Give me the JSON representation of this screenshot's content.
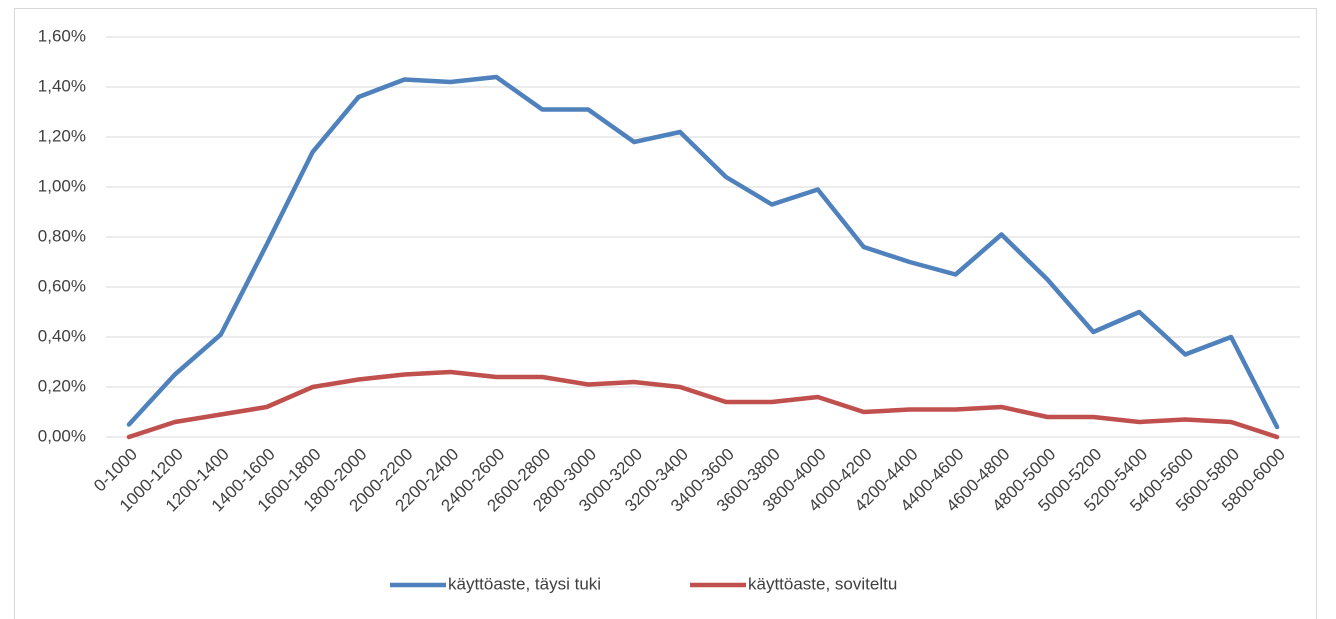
{
  "chart_data": {
    "type": "line",
    "categories": [
      "0-1000",
      "1000-1200",
      "1200-1400",
      "1400-1600",
      "1600-1800",
      "1800-2000",
      "2000-2200",
      "2200-2400",
      "2400-2600",
      "2600-2800",
      "2800-3000",
      "3000-3200",
      "3200-3400",
      "3400-3600",
      "3600-3800",
      "3800-4000",
      "4000-4200",
      "4200-4400",
      "4400-4600",
      "4600-4800",
      "4800-5000",
      "5000-5200",
      "5200-5400",
      "5400-5600",
      "5600-5800",
      "5800-6000"
    ],
    "series": [
      {
        "name": "käyttöaste, täysi tuki",
        "color": "#4f81bd",
        "values": [
          0.05,
          0.25,
          0.41,
          0.77,
          1.14,
          1.36,
          1.43,
          1.42,
          1.44,
          1.31,
          1.31,
          1.18,
          1.22,
          1.04,
          0.93,
          0.99,
          0.76,
          0.7,
          0.65,
          0.81,
          0.63,
          0.42,
          0.5,
          0.33,
          0.4,
          0.04
        ]
      },
      {
        "name": "käyttöaste, soviteltu",
        "color": "#c0504d",
        "values": [
          0.0,
          0.06,
          0.09,
          0.12,
          0.2,
          0.23,
          0.25,
          0.26,
          0.24,
          0.24,
          0.21,
          0.22,
          0.2,
          0.14,
          0.14,
          0.16,
          0.1,
          0.11,
          0.11,
          0.12,
          0.08,
          0.08,
          0.06,
          0.07,
          0.06,
          0.0
        ]
      }
    ],
    "ylim": [
      0,
      1.6
    ],
    "yticks": [
      {
        "value": 0,
        "label": "0,00%"
      },
      {
        "value": 0.2,
        "label": "0,20%"
      },
      {
        "value": 0.4,
        "label": "0,40%"
      },
      {
        "value": 0.6,
        "label": "0,60%"
      },
      {
        "value": 0.8,
        "label": "0,80%"
      },
      {
        "value": 1.0,
        "label": "1,00%"
      },
      {
        "value": 1.2,
        "label": "1,20%"
      },
      {
        "value": 1.4,
        "label": "1,40%"
      },
      {
        "value": 1.6,
        "label": "1,60%"
      }
    ],
    "grid": true,
    "legend": "bottom"
  }
}
